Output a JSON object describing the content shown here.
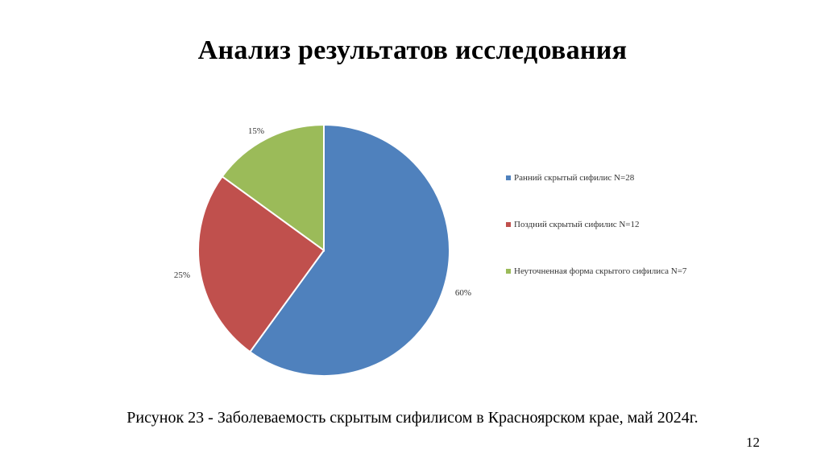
{
  "slide": {
    "title": "Анализ результатов исследования",
    "caption": "Рисунок 23 - Заболеваемость скрытым сифилисом в Красноярском крае, май 2024г.",
    "page_number": "12"
  },
  "chart_data": {
    "type": "pie",
    "title": "",
    "legend_position": "right",
    "categories": [
      "Ранний скрытый сифилис N=28",
      "Поздний скрытый сифилис N=12",
      "Неуточненная форма скрытого сифилиса N=7"
    ],
    "values": [
      60,
      25,
      15
    ],
    "labels": [
      "60%",
      "25%",
      "15%"
    ],
    "colors": [
      "#4F81BD",
      "#C0504D",
      "#9BBB59"
    ]
  }
}
